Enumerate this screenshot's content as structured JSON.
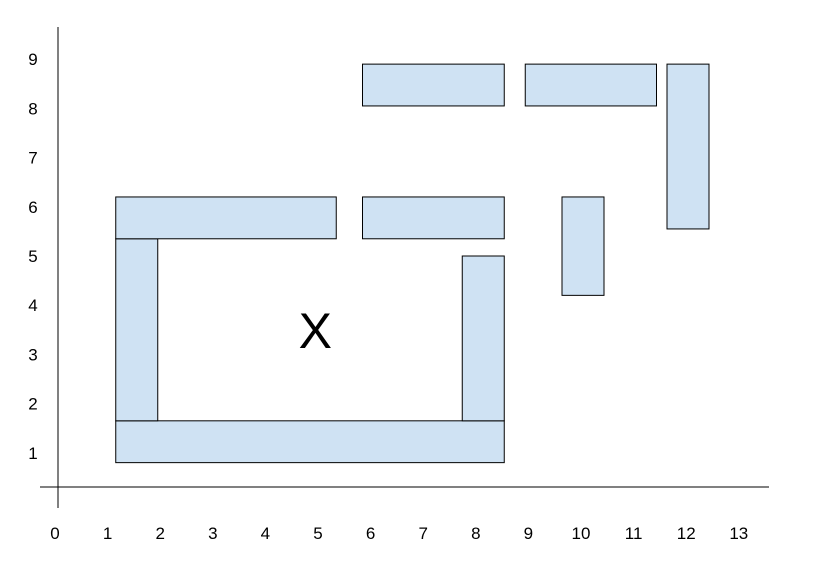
{
  "diagram": {
    "block_fill": "#cfe2f3",
    "block_stroke": "#000000",
    "x_ticks": [
      "0",
      "1",
      "2",
      "3",
      "4",
      "5",
      "6",
      "7",
      "8",
      "9",
      "10",
      "11",
      "12",
      "13"
    ],
    "y_ticks": [
      "1",
      "2",
      "3",
      "4",
      "5",
      "6",
      "7",
      "8",
      "9"
    ],
    "marker": {
      "label": "X",
      "x": 4.9,
      "y": 3.5
    },
    "blocks": [
      {
        "name": "block-bottom-wall",
        "x0": 1.1,
        "x1": 8.5,
        "y0": 0.8,
        "y1": 1.65
      },
      {
        "name": "block-left-wall",
        "x0": 1.1,
        "x1": 1.9,
        "y0": 1.65,
        "y1": 5.35
      },
      {
        "name": "block-right-wall",
        "x0": 7.7,
        "x1": 8.5,
        "y0": 1.65,
        "y1": 5.0
      },
      {
        "name": "block-top-left",
        "x0": 1.1,
        "x1": 5.3,
        "y0": 5.35,
        "y1": 6.2
      },
      {
        "name": "block-top-right",
        "x0": 5.8,
        "x1": 8.5,
        "y0": 5.35,
        "y1": 6.2
      },
      {
        "name": "block-small-post",
        "x0": 9.6,
        "x1": 10.4,
        "y0": 4.2,
        "y1": 6.2
      },
      {
        "name": "block-upper-left",
        "x0": 5.8,
        "x1": 8.5,
        "y0": 8.05,
        "y1": 8.9
      },
      {
        "name": "block-upper-middle",
        "x0": 8.9,
        "x1": 11.4,
        "y0": 8.05,
        "y1": 8.9
      },
      {
        "name": "block-upper-right-post",
        "x0": 11.6,
        "x1": 12.4,
        "y0": 5.55,
        "y1": 8.9
      }
    ]
  }
}
